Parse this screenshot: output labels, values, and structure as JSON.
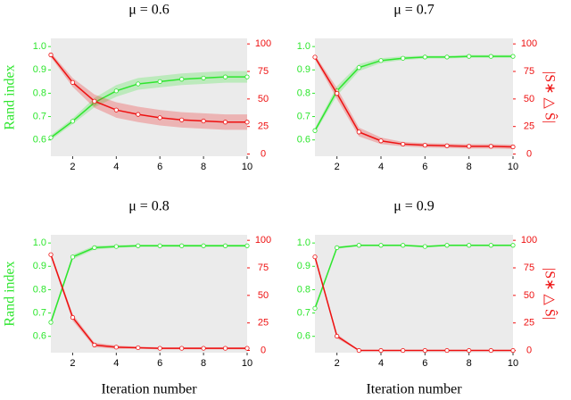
{
  "chart_data": [
    {
      "type": "line",
      "title": "μ = 0.6",
      "y_label": "Rand index",
      "x": [
        1,
        2,
        3,
        4,
        5,
        6,
        7,
        8,
        9,
        10
      ],
      "xlim": [
        1,
        10
      ],
      "xticks": [
        2,
        4,
        6,
        8,
        10
      ],
      "ylim": [
        0.53,
        1.035
      ],
      "yticks": [
        0.6,
        0.7,
        0.8,
        0.9,
        {
          "value": 1,
          "label": "1.0"
        }
      ],
      "y2lim": [
        -2,
        105
      ],
      "y2ticks": [
        0,
        25,
        50,
        75,
        100
      ],
      "background": "#ebebeb",
      "series": [
        {
          "color": "#2ee62e",
          "values": [
            0.61,
            0.68,
            0.76,
            0.81,
            0.84,
            0.85,
            0.86,
            0.865,
            0.87,
            0.87
          ],
          "errors": [
            0.01,
            0.012,
            0.02,
            0.025,
            0.025,
            0.025,
            0.025,
            0.025,
            0.025,
            0.025
          ]
        },
        {
          "color": "#ee1111",
          "axis": "y2",
          "values": [
            90,
            65,
            48,
            40,
            36,
            33,
            31,
            30,
            29,
            29
          ],
          "errors": [
            2,
            4,
            6,
            7,
            7,
            7,
            7,
            7,
            7,
            7
          ]
        }
      ]
    },
    {
      "type": "line",
      "title": "μ = 0.7",
      "y2_label": "|S∗ △ Ŝ|",
      "x": [
        1,
        2,
        3,
        4,
        5,
        6,
        7,
        8,
        9,
        10
      ],
      "xlim": [
        1,
        10
      ],
      "xticks": [
        2,
        4,
        6,
        8,
        10
      ],
      "ylim": [
        0.53,
        1.035
      ],
      "yticks": [
        0.6,
        0.7,
        0.8,
        0.9,
        {
          "value": 1,
          "label": "1.0"
        }
      ],
      "y2lim": [
        -2,
        105
      ],
      "y2ticks": [
        0,
        25,
        50,
        75,
        100
      ],
      "background": "#ebebeb",
      "series": [
        {
          "color": "#2ee62e",
          "values": [
            0.64,
            0.81,
            0.91,
            0.94,
            0.95,
            0.955,
            0.955,
            0.958,
            0.958,
            0.958
          ],
          "errors": [
            0.01,
            0.02,
            0.015,
            0.01,
            0.008,
            0.006,
            0.006,
            0.006,
            0.006,
            0.006
          ]
        },
        {
          "color": "#ee1111",
          "axis": "y2",
          "values": [
            88,
            55,
            20,
            12,
            9,
            8,
            7.5,
            7,
            7,
            6.5
          ],
          "errors": [
            2,
            5,
            4,
            3,
            2,
            2,
            2,
            2,
            2,
            2
          ]
        }
      ]
    },
    {
      "type": "line",
      "title": "μ = 0.8",
      "y_label": "Rand index",
      "x_label": "Iteration number",
      "x": [
        1,
        2,
        3,
        4,
        5,
        6,
        7,
        8,
        9,
        10
      ],
      "xlim": [
        1,
        10
      ],
      "xticks": [
        2,
        4,
        6,
        8,
        10
      ],
      "ylim": [
        0.53,
        1.035
      ],
      "yticks": [
        0.6,
        0.7,
        0.8,
        0.9,
        {
          "value": 1,
          "label": "1.0"
        }
      ],
      "y2lim": [
        -2,
        105
      ],
      "y2ticks": [
        0,
        25,
        50,
        75,
        100
      ],
      "background": "#ebebeb",
      "series": [
        {
          "color": "#2ee62e",
          "values": [
            0.66,
            0.94,
            0.98,
            0.985,
            0.988,
            0.988,
            0.988,
            0.988,
            0.988,
            0.988
          ],
          "errors": [
            0.01,
            0.01,
            0.008,
            0.006,
            0.005,
            0.005,
            0.005,
            0.005,
            0.005,
            0.005
          ]
        },
        {
          "color": "#ee1111",
          "axis": "y2",
          "values": [
            87,
            30,
            5,
            3,
            2.5,
            2,
            2,
            2,
            2,
            2
          ],
          "errors": [
            2,
            3,
            2,
            1.5,
            1,
            1,
            1,
            1,
            1,
            1
          ]
        }
      ]
    },
    {
      "type": "line",
      "title": "μ = 0.9",
      "y2_label": "|S∗ △ Ŝ|",
      "x_label": "Iteration number",
      "x": [
        1,
        2,
        3,
        4,
        5,
        6,
        7,
        8,
        9,
        10
      ],
      "xlim": [
        1,
        10
      ],
      "xticks": [
        2,
        4,
        6,
        8,
        10
      ],
      "ylim": [
        0.53,
        1.035
      ],
      "yticks": [
        0.6,
        0.7,
        0.8,
        0.9,
        {
          "value": 1,
          "label": "1.0"
        }
      ],
      "y2lim": [
        -2,
        105
      ],
      "y2ticks": [
        0,
        25,
        50,
        75,
        100
      ],
      "background": "#ebebeb",
      "series": [
        {
          "color": "#2ee62e",
          "values": [
            0.72,
            0.98,
            0.99,
            0.99,
            0.99,
            0.985,
            0.99,
            0.99,
            0.99,
            0.99
          ],
          "errors": [
            0.01,
            0.005,
            0.004,
            0.004,
            0.004,
            0.004,
            0.004,
            0.004,
            0.004,
            0.004
          ]
        },
        {
          "color": "#ee1111",
          "axis": "y2",
          "values": [
            85,
            13,
            0,
            0,
            0,
            0,
            0,
            0,
            0,
            0
          ],
          "errors": [
            2,
            2,
            0.5,
            0.5,
            0.5,
            0.5,
            0.5,
            0.5,
            0.5,
            0.5
          ]
        }
      ]
    }
  ]
}
